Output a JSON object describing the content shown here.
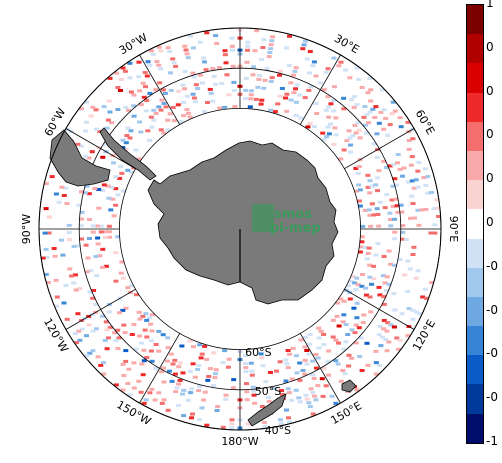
{
  "map": {
    "projection": "south-polar-stereographic",
    "center_label": "Antarctica",
    "land_color": "#7a7a7a",
    "coast_color": "#000000",
    "grid_color": "#000000",
    "longitude_labels": [
      {
        "lon": -30,
        "text": "30°W"
      },
      {
        "lon": 30,
        "text": "30°E"
      },
      {
        "lon": -60,
        "text": "60°W"
      },
      {
        "lon": 60,
        "text": "60°E"
      },
      {
        "lon": -90,
        "text": "90°W"
      },
      {
        "lon": 90,
        "text": "90°E"
      },
      {
        "lon": -120,
        "text": "120°W"
      },
      {
        "lon": 120,
        "text": "120°E"
      },
      {
        "lon": -150,
        "text": "150°W"
      },
      {
        "lon": 150,
        "text": "150°E"
      },
      {
        "lon": 180,
        "text": "180°W"
      }
    ],
    "latitude_labels": [
      {
        "lat": -60,
        "text": "60°S"
      },
      {
        "lat": -50,
        "text": "50°S"
      },
      {
        "lat": -40,
        "text": "40°S"
      }
    ],
    "latitude_circles": [
      -60,
      -50,
      -40
    ],
    "data_band": {
      "lat_min": -60,
      "lat_max": -40
    }
  },
  "logo": {
    "line1": "smos",
    "line2": "pi-mep",
    "color": "#3a9a5c"
  },
  "colorbar": {
    "ticks": [
      "1",
      "0",
      "0",
      "0",
      "0",
      "0",
      "-0",
      "-0",
      "-0",
      "-0",
      "-1"
    ],
    "colors": [
      "#7d0000",
      "#b00000",
      "#d80000",
      "#ee2a2a",
      "#f46e6e",
      "#f9a9a9",
      "#fbd3d3",
      "#ffffff",
      "#cfe2f6",
      "#a2c8ee",
      "#6ea9e3",
      "#3684d6",
      "#0a5bc8",
      "#003a9a",
      "#000d6b"
    ]
  }
}
